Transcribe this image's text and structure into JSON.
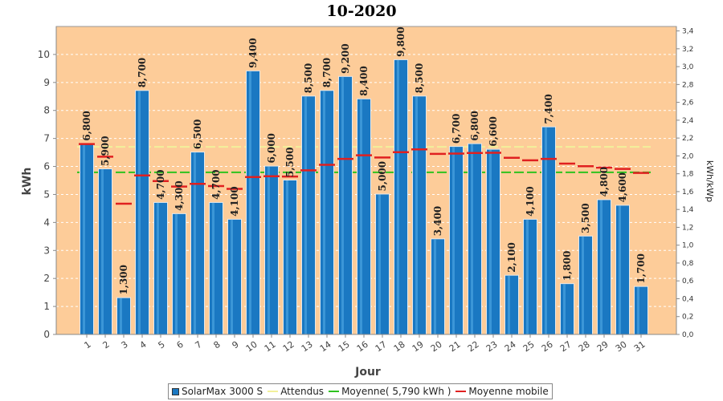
{
  "chart_data": {
    "type": "bar",
    "title": "10-2020",
    "xlabel": "Jour",
    "ylabel": "kWh",
    "ylabel_right": "kWh/kWp",
    "ylim": [
      0,
      11
    ],
    "y_ticks": [
      "0",
      "1",
      "2",
      "3",
      "4",
      "5",
      "6",
      "7",
      "8",
      "9",
      "10"
    ],
    "ylim_right": [
      0,
      3.45
    ],
    "y_ticks_right": [
      "0,0",
      "0,2",
      "0,4",
      "0,6",
      "0,8",
      "1,0",
      "1,2",
      "1,4",
      "1,6",
      "1,8",
      "2,0",
      "2,2",
      "2,4",
      "2,6",
      "2,8",
      "3,0",
      "3,2",
      "3,4"
    ],
    "categories": [
      "1",
      "2",
      "3",
      "4",
      "5",
      "6",
      "7",
      "8",
      "9",
      "10",
      "11",
      "12",
      "13",
      "14",
      "15",
      "16",
      "17",
      "18",
      "19",
      "20",
      "21",
      "22",
      "23",
      "24",
      "25",
      "26",
      "27",
      "28",
      "29",
      "30",
      "31"
    ],
    "series": [
      {
        "name": "SolarMax 3000 S",
        "values": [
          6.8,
          5.9,
          1.3,
          8.7,
          4.7,
          4.3,
          6.5,
          4.7,
          4.1,
          9.4,
          6.0,
          5.5,
          8.5,
          8.7,
          9.2,
          8.4,
          5.0,
          9.8,
          8.5,
          3.4,
          6.7,
          6.8,
          6.6,
          2.1,
          4.1,
          7.4,
          1.8,
          3.5,
          4.8,
          4.6,
          1.7
        ],
        "labels": [
          "6,800",
          "5,900",
          "1,300",
          "8,700",
          "4,700",
          "4,300",
          "6,500",
          "4,700",
          "4,100",
          "9,400",
          "6,000",
          "5,500",
          "8,500",
          "8,700",
          "9,200",
          "8,400",
          "5,000",
          "9,800",
          "8,500",
          "3,400",
          "6,700",
          "6,800",
          "6,600",
          "2,100",
          "4,100",
          "7,400",
          "1,800",
          "3,500",
          "4,800",
          "4,600",
          "1,700"
        ],
        "color": "#1a78c2"
      },
      {
        "name": "Attendus",
        "value": 6.7,
        "color": "#f2f09a"
      },
      {
        "name": "Moyenne( 5,790 kWh )",
        "value": 5.79,
        "color": "#2ec21e"
      },
      {
        "name": "Moyenne mobile",
        "values": [
          6.8,
          6.35,
          4.67,
          5.68,
          5.48,
          5.28,
          5.38,
          5.3,
          5.2,
          5.62,
          5.65,
          5.64,
          5.86,
          6.06,
          6.27,
          6.4,
          6.32,
          6.51,
          6.61,
          6.45,
          6.46,
          6.48,
          6.49,
          6.31,
          6.22,
          6.27,
          6.1,
          6.01,
          5.96,
          5.91,
          5.77
        ],
        "color": "#e02020"
      }
    ],
    "plot_background": "#fdcc99",
    "grid": true,
    "legend_position": "bottom"
  }
}
